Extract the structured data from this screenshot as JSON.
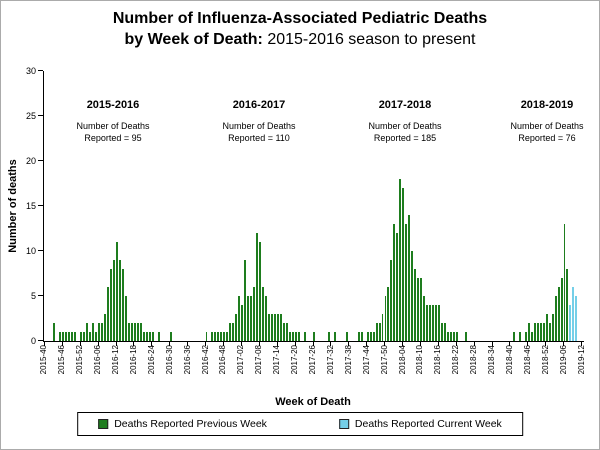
{
  "title": {
    "line1": "Number of Influenza-Associated Pediatric Deaths",
    "line2_bold": "by Week of Death:",
    "line2_rest": " 2015-2016 season to present"
  },
  "y_axis": {
    "label": "Number of deaths",
    "ticks": [
      "0",
      "5",
      "10",
      "15",
      "20",
      "25",
      "30"
    ],
    "max": 30
  },
  "x_axis": {
    "label": "Week of Death",
    "tick_interval": 6,
    "tick_labels": [
      "2015-40",
      "2015-46",
      "2015-52",
      "2016-06",
      "2016-12",
      "2016-18",
      "2016-24",
      "2016-30",
      "2016-36",
      "2016-42",
      "2016-48",
      "2017-02",
      "2017-08",
      "2017-14",
      "2017-20",
      "2017-26",
      "2017-32",
      "2017-38",
      "2017-44",
      "2017-50",
      "2018-04",
      "2018-10",
      "2018-16",
      "2018-22",
      "2018-28",
      "2018-34",
      "2018-40",
      "2018-46",
      "2018-52",
      "2019-06",
      "2019-12"
    ]
  },
  "annotations": [
    {
      "season": "2015-2016",
      "deaths_line1": "Number of Deaths",
      "deaths_line2": "Reported = 95"
    },
    {
      "season": "2016-2017",
      "deaths_line1": "Number of Deaths",
      "deaths_line2": "Reported = 110"
    },
    {
      "season": "2017-2018",
      "deaths_line1": "Number of Deaths",
      "deaths_line2": "Reported = 185"
    },
    {
      "season": "2018-2019",
      "deaths_line1": "Number of Deaths",
      "deaths_line2": "Reported = 76"
    }
  ],
  "legend": {
    "items": [
      {
        "label": "Deaths Reported Previous Week",
        "color": "#1e7d1e"
      },
      {
        "label": "Deaths Reported Current Week",
        "color": "#74cfe8"
      }
    ]
  },
  "chart_data": {
    "type": "bar",
    "title": "Number of Influenza-Associated Pediatric Deaths by Week of Death: 2015-2016 season to present",
    "xlabel": "Week of Death",
    "ylabel": "Number of deaths",
    "ylim": [
      0,
      30
    ],
    "x_start_week": "2015-40",
    "x_end_week": "2019-12",
    "total_weeks": 181,
    "y_max": 30,
    "season_totals": {
      "2015-2016": 95,
      "2016-2017": 110,
      "2017-2018": 185,
      "2018-2019": 76
    },
    "series": [
      {
        "name": "Deaths Reported Previous Week",
        "color": "#1e7d1e",
        "points": {
          "2015-43": 2,
          "2015-45": 1,
          "2015-46": 1,
          "2015-47": 1,
          "2015-48": 1,
          "2015-49": 1,
          "2015-50": 1,
          "2015-52": 1,
          "2016-01": 1,
          "2016-02": 2,
          "2016-03": 1,
          "2016-04": 2,
          "2016-05": 1,
          "2016-06": 2,
          "2016-07": 2,
          "2016-08": 3,
          "2016-09": 6,
          "2016-10": 8,
          "2016-11": 9,
          "2016-12": 11,
          "2016-13": 9,
          "2016-14": 8,
          "2016-15": 5,
          "2016-16": 2,
          "2016-17": 2,
          "2016-18": 2,
          "2016-19": 2,
          "2016-20": 2,
          "2016-21": 1,
          "2016-22": 1,
          "2016-23": 1,
          "2016-24": 1,
          "2016-26": 1,
          "2016-30": 1,
          "2016-42": 1,
          "2016-44": 1,
          "2016-45": 1,
          "2016-46": 1,
          "2016-47": 1,
          "2016-48": 1,
          "2016-49": 1,
          "2016-50": 2,
          "2016-51": 2,
          "2016-52": 3,
          "2017-01": 5,
          "2017-02": 4,
          "2017-03": 9,
          "2017-04": 5,
          "2017-05": 5,
          "2017-06": 6,
          "2017-07": 12,
          "2017-08": 11,
          "2017-09": 6,
          "2017-10": 5,
          "2017-11": 3,
          "2017-12": 3,
          "2017-13": 3,
          "2017-14": 3,
          "2017-15": 3,
          "2017-16": 2,
          "2017-17": 2,
          "2017-18": 1,
          "2017-19": 1,
          "2017-20": 1,
          "2017-21": 1,
          "2017-23": 1,
          "2017-26": 1,
          "2017-31": 1,
          "2017-33": 1,
          "2017-37": 1,
          "2017-41": 1,
          "2017-42": 1,
          "2017-44": 1,
          "2017-45": 1,
          "2017-46": 1,
          "2017-47": 2,
          "2017-48": 2,
          "2017-49": 3,
          "2017-50": 5,
          "2017-51": 6,
          "2017-52": 9,
          "2018-01": 13,
          "2018-02": 12,
          "2018-03": 18,
          "2018-04": 17,
          "2018-05": 13,
          "2018-06": 14,
          "2018-07": 10,
          "2018-08": 8,
          "2018-09": 7,
          "2018-10": 7,
          "2018-11": 5,
          "2018-12": 4,
          "2018-13": 4,
          "2018-14": 4,
          "2018-15": 4,
          "2018-16": 4,
          "2018-17": 2,
          "2018-18": 2,
          "2018-19": 1,
          "2018-20": 1,
          "2018-21": 1,
          "2018-22": 1,
          "2018-25": 1,
          "2018-41": 1,
          "2018-43": 1,
          "2018-45": 1,
          "2018-46": 2,
          "2018-47": 1,
          "2018-48": 2,
          "2018-49": 2,
          "2018-50": 2,
          "2018-51": 2,
          "2018-52": 3,
          "2019-01": 2,
          "2019-02": 3,
          "2019-03": 5,
          "2019-04": 6,
          "2019-05": 7,
          "2019-06": 13,
          "2019-07": 8
        }
      },
      {
        "name": "Deaths Reported Current Week",
        "color": "#74cfe8",
        "points": {
          "2019-08": 4,
          "2019-09": 6,
          "2019-10": 5
        }
      }
    ]
  }
}
